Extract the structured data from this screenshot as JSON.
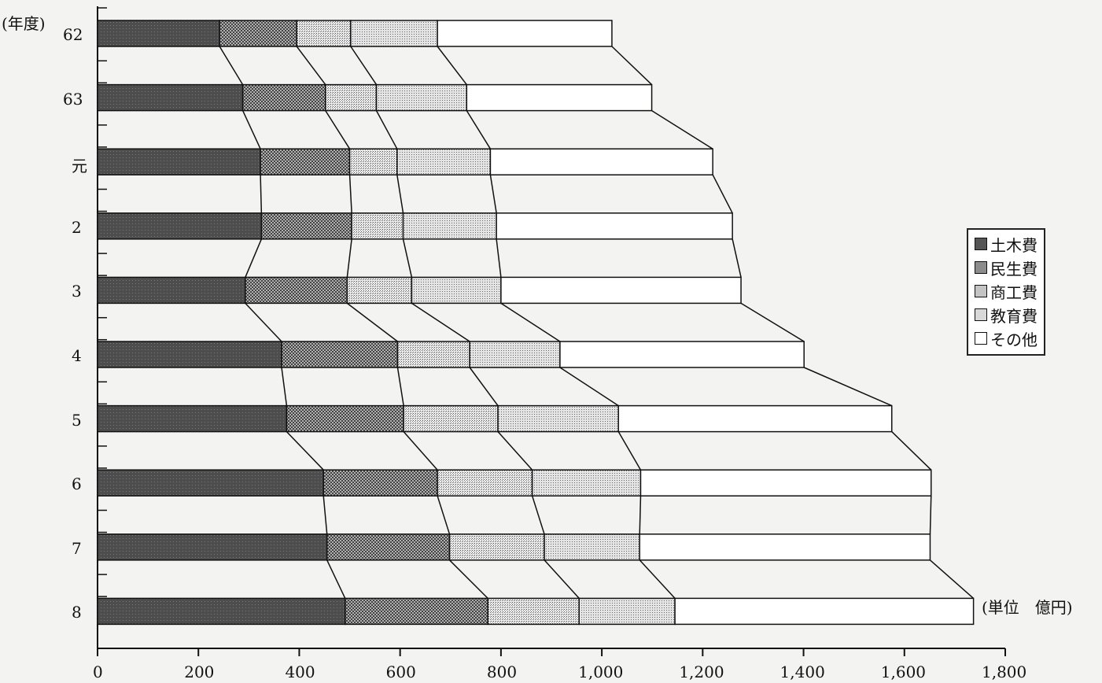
{
  "chart_data": {
    "type": "bar",
    "stacked": true,
    "orientation": "horizontal",
    "ylabel": "(年度)",
    "unit": "(単位　億円)",
    "categories": [
      "62",
      "63",
      "元",
      "2",
      "3",
      "4",
      "5",
      "6",
      "7",
      "8"
    ],
    "xlim": [
      0,
      1800
    ],
    "xticks": [
      "0",
      "200",
      "400",
      "600",
      "800",
      "1,000",
      "1,200",
      "1,400",
      "1,600",
      "1,800"
    ],
    "legend_position": "right",
    "series": [
      {
        "name": "土木費",
        "color": "#555555",
        "values": [
          242,
          288,
          323,
          325,
          293,
          365,
          375,
          448,
          455,
          491
        ]
      },
      {
        "name": "民生費",
        "color": "#8c8c8c",
        "values": [
          153,
          164,
          177,
          179,
          202,
          230,
          232,
          226,
          243,
          283
        ]
      },
      {
        "name": "商工費",
        "color": "#c4c4c4",
        "values": [
          107,
          101,
          94,
          102,
          128,
          143,
          187,
          188,
          188,
          181
        ]
      },
      {
        "name": "教育費",
        "color": "#d9d9d9",
        "values": [
          172,
          179,
          185,
          185,
          177,
          179,
          239,
          215,
          189,
          190
        ]
      },
      {
        "name": "その他",
        "color": "#ffffff",
        "values": [
          346,
          367,
          441,
          468,
          476,
          484,
          542,
          576,
          576,
          592
        ]
      }
    ]
  }
}
